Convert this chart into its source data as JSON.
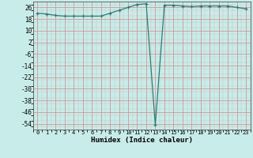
{
  "x": [
    0,
    1,
    2,
    3,
    4,
    5,
    6,
    7,
    8,
    9,
    10,
    11,
    12,
    13,
    14,
    15,
    16,
    17,
    18,
    19,
    20,
    21,
    22,
    23
  ],
  "y": [
    22,
    21.5,
    20.5,
    20,
    20,
    20,
    20,
    20,
    22,
    24,
    26,
    28,
    28.5,
    -55,
    27.5,
    27.5,
    27,
    26.5,
    27,
    27,
    27,
    27,
    26,
    25
  ],
  "ylim": [
    -58,
    30
  ],
  "xlim": [
    -0.5,
    23.5
  ],
  "yticks": [
    26,
    18,
    10,
    2,
    -6,
    -14,
    -22,
    -30,
    -38,
    -46,
    -54
  ],
  "xticks": [
    0,
    1,
    2,
    3,
    4,
    5,
    6,
    7,
    8,
    9,
    10,
    11,
    12,
    13,
    14,
    15,
    16,
    17,
    18,
    19,
    20,
    21,
    22,
    23
  ],
  "xlabel": "Humidex (Indice chaleur)",
  "line_color": "#2d7d78",
  "marker": "+",
  "bg_color": "#c8ece9",
  "grid_color": "#cc9999",
  "title": ""
}
